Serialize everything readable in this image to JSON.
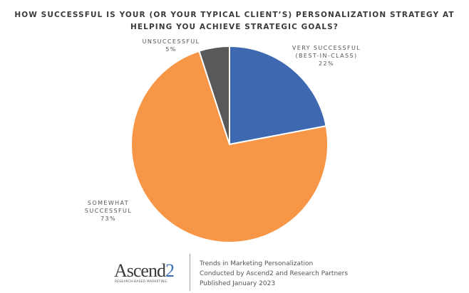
{
  "title": {
    "line1": "HOW SUCCESSFUL IS YOUR (OR YOUR TYPICAL CLIENT’S) PERSONALIZATION STRATEGY AT",
    "line2": "HELPING YOU ACHIEVE STRATEGIC GOALS?"
  },
  "labels": {
    "very_successful": {
      "line1": "VERY SUCCESSFUL",
      "line2": "(BEST-IN-CLASS)",
      "pct": "22%"
    },
    "somewhat_successful": {
      "line1": "SOMEWHAT",
      "line2": "SUCCESSFUL",
      "pct": "73%"
    },
    "unsuccessful": {
      "line1": "UNSUCCESSFUL",
      "pct": "5%"
    }
  },
  "footer": {
    "logo_word": "Ascend",
    "logo_number": "2",
    "logo_tagline": "RESEARCH-BASED MARKETING",
    "line1": "Trends in Marketing Personalization",
    "line2": "Conducted by Ascend2 and Research Partners",
    "line3": "Published January 2023"
  },
  "colors": {
    "very_successful": "#3e68b0",
    "somewhat_successful": "#f79646",
    "unsuccessful": "#595959"
  },
  "chart_data": {
    "type": "pie",
    "title": "HOW SUCCESSFUL IS YOUR (OR YOUR TYPICAL CLIENT’S) PERSONALIZATION STRATEGY AT HELPING YOU ACHIEVE STRATEGIC GOALS?",
    "categories": [
      "Very successful (best-in-class)",
      "Somewhat successful",
      "Unsuccessful"
    ],
    "values": [
      22,
      73,
      5
    ],
    "unit": "%",
    "colors": [
      "#3e68b0",
      "#f79646",
      "#595959"
    ],
    "start_angle": "12 o'clock, clockwise",
    "legend": "none (data labels outside slices)"
  }
}
